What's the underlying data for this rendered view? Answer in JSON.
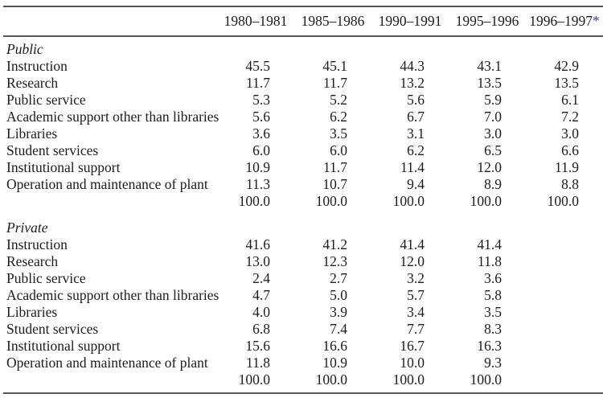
{
  "table": {
    "columns": [
      "1980–1981",
      "1985–1986",
      "1990–1991",
      "1995–1996",
      "1996–1997"
    ],
    "footnote_marker": "*",
    "colors": {
      "footnote_asterisk": "#3a3aa8",
      "rule": "#565656",
      "text": "#1c1c1c"
    },
    "sections": [
      {
        "title": "Public",
        "rows": [
          {
            "label": "Instruction",
            "values": [
              "45.5",
              "45.1",
              "44.3",
              "43.1",
              "42.9"
            ]
          },
          {
            "label": "Research",
            "values": [
              "11.7",
              "11.7",
              "13.2",
              "13.5",
              "13.5"
            ]
          },
          {
            "label": "Public service",
            "values": [
              "5.3",
              "5.2",
              "5.6",
              "5.9",
              "6.1"
            ]
          },
          {
            "label": "Academic support other than libraries",
            "values": [
              "5.6",
              "6.2",
              "6.7",
              "7.0",
              "7.2"
            ]
          },
          {
            "label": "Libraries",
            "values": [
              "3.6",
              "3.5",
              "3.1",
              "3.0",
              "3.0"
            ]
          },
          {
            "label": "Student services",
            "values": [
              "6.0",
              "6.0",
              "6.2",
              "6.5",
              "6.6"
            ]
          },
          {
            "label": "Institutional support",
            "values": [
              "10.9",
              "11.7",
              "11.4",
              "12.0",
              "11.9"
            ]
          },
          {
            "label": "Operation and maintenance of plant",
            "values": [
              "11.3",
              "10.7",
              "9.4",
              "8.9",
              "8.8"
            ]
          }
        ],
        "total": {
          "label": "",
          "values": [
            "100.0",
            "100.0",
            "100.0",
            "100.0",
            "100.0"
          ]
        }
      },
      {
        "title": "Private",
        "rows": [
          {
            "label": "Instruction",
            "values": [
              "41.6",
              "41.2",
              "41.4",
              "41.4",
              ""
            ]
          },
          {
            "label": "Research",
            "values": [
              "13.0",
              "12.3",
              "12.0",
              "11.8",
              ""
            ]
          },
          {
            "label": "Public service",
            "values": [
              "2.4",
              "2.7",
              "3.2",
              "3.6",
              ""
            ]
          },
          {
            "label": "Academic support other than libraries",
            "values": [
              "4.7",
              "5.0",
              "5.7",
              "5.8",
              ""
            ]
          },
          {
            "label": "Libraries",
            "values": [
              "4.0",
              "3.9",
              "3.4",
              "3.5",
              ""
            ]
          },
          {
            "label": "Student services",
            "values": [
              "6.8",
              "7.4",
              "7.7",
              "8.3",
              ""
            ]
          },
          {
            "label": "Institutional support",
            "values": [
              "15.6",
              "16.6",
              "16.7",
              "16.3",
              ""
            ]
          },
          {
            "label": "Operation and maintenance of plant",
            "values": [
              "11.8",
              "10.9",
              "10.0",
              "9.3",
              ""
            ]
          }
        ],
        "total": {
          "label": "",
          "values": [
            "100.0",
            "100.0",
            "100.0",
            "100.0",
            ""
          ]
        }
      }
    ]
  }
}
